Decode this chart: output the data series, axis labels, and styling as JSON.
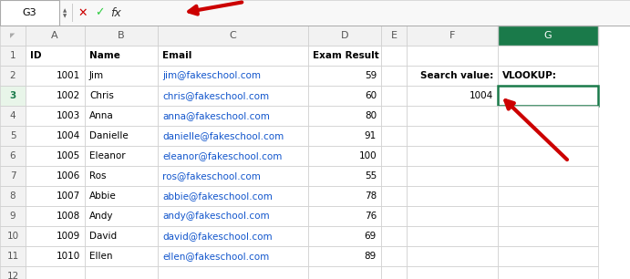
{
  "rows": [
    [
      "ID",
      "Name",
      "Email",
      "Exam Result",
      "",
      "",
      ""
    ],
    [
      1001,
      "Jim",
      "jim@fakeschool.com",
      59,
      "",
      "",
      ""
    ],
    [
      1002,
      "Chris",
      "chris@fakeschool.com",
      60,
      "",
      "",
      ""
    ],
    [
      1003,
      "Anna",
      "anna@fakeschool.com",
      80,
      "",
      "",
      ""
    ],
    [
      1004,
      "Danielle",
      "danielle@fakeschool.com",
      91,
      "",
      "",
      ""
    ],
    [
      1005,
      "Eleanor",
      "eleanor@fakeschool.com",
      100,
      "",
      "",
      ""
    ],
    [
      1006,
      "Ros",
      "ros@fakeschool.com",
      55,
      "",
      "",
      ""
    ],
    [
      1007,
      "Abbie",
      "abbie@fakeschool.com",
      78,
      "",
      "",
      ""
    ],
    [
      1008,
      "Andy",
      "andy@fakeschool.com",
      76,
      "",
      "",
      ""
    ],
    [
      1009,
      "David",
      "david@fakeschool.com",
      69,
      "",
      "",
      ""
    ],
    [
      1010,
      "Ellen",
      "ellen@fakeschool.com",
      89,
      "",
      "",
      ""
    ],
    [
      "",
      "",
      "",
      "",
      "",
      "",
      ""
    ]
  ],
  "col_labels": [
    "A",
    "B",
    "C",
    "D",
    "E",
    "F",
    "G"
  ],
  "extra_labels": {
    "F2": "Search value:",
    "G2": "VLOOKUP:",
    "F3": "1004"
  },
  "selected_cell": "G3",
  "name_box": "G3",
  "link_color": "#1155CC",
  "grid_color": "#CCCCCC",
  "selected_col_header_color": "#1a7a4a",
  "selected_cell_border": "#1a7a4a",
  "arrow_color": "#CC0000",
  "background": "#FFFFFF",
  "toolbar_bg": "#F8F8F8",
  "col_header_bg": "#F2F2F2",
  "row_header_bg": "#F2F2F2",
  "selected_row_header_bg": "#E8F5E9",
  "selected_row_header_color": "#1a7a4a"
}
